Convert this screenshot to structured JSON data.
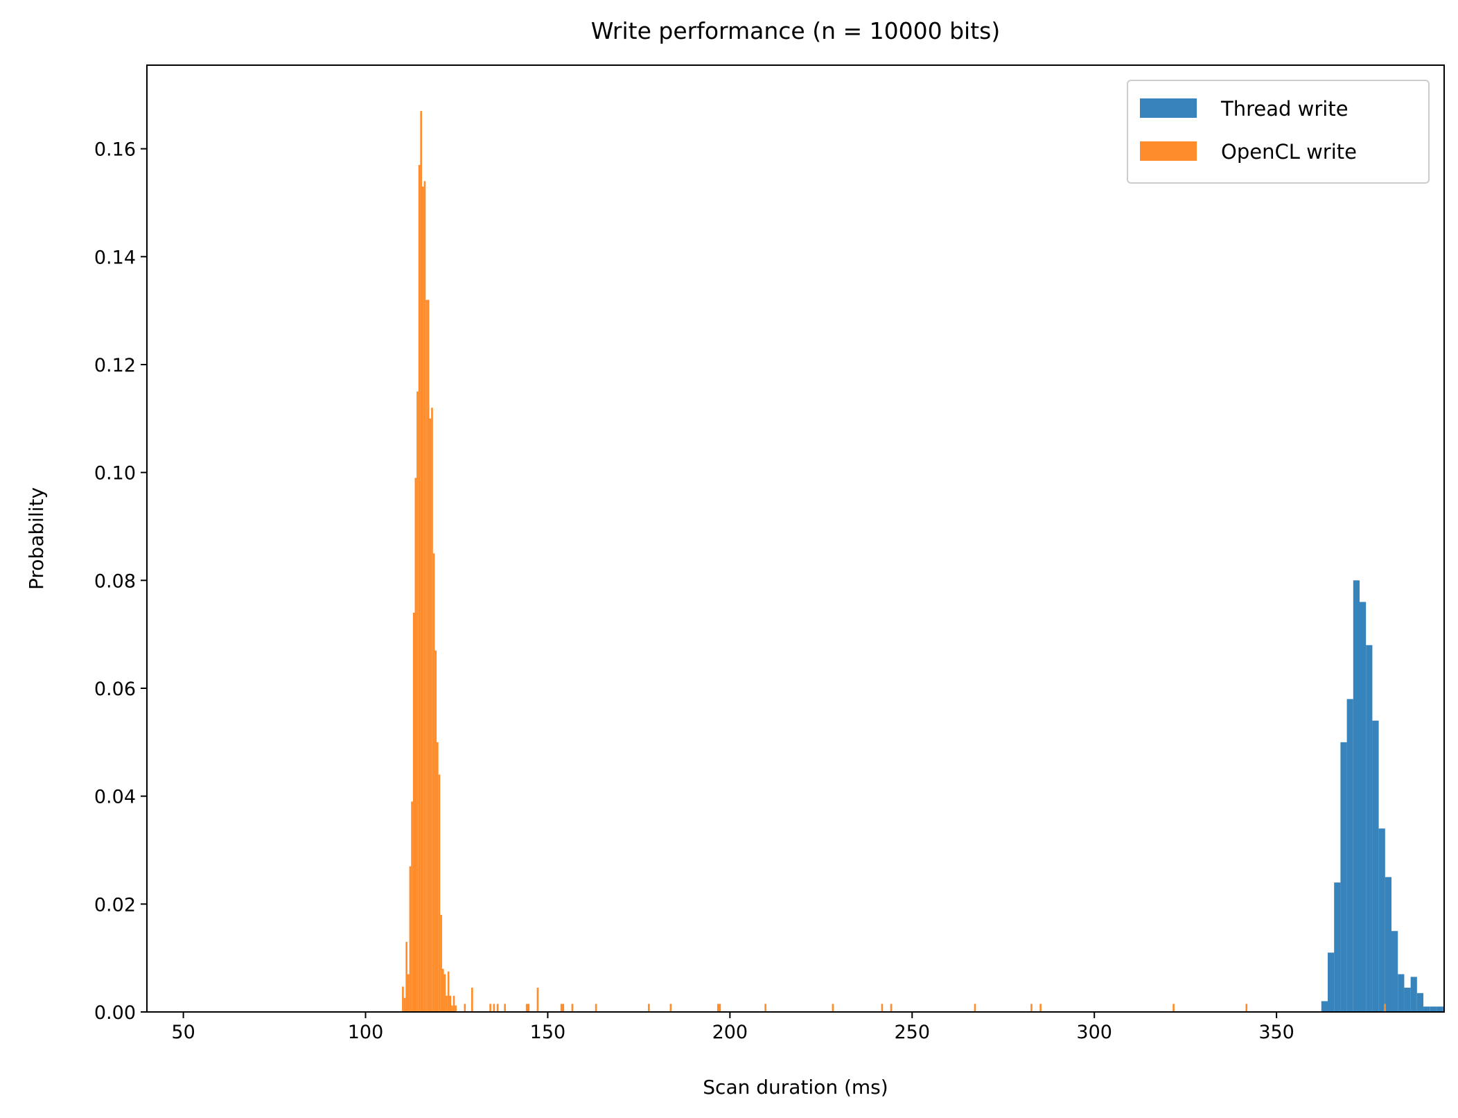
{
  "chart_data": {
    "type": "histogram",
    "title": "Write performance (n = 10000 bits)",
    "x_label": "Scan duration (ms)",
    "y_label": "Probability",
    "xlim": [
      40,
      396
    ],
    "ylim": [
      0,
      0.1755
    ],
    "xticks": [
      50,
      100,
      150,
      200,
      250,
      300,
      350
    ],
    "yticks": [
      {
        "value": 0,
        "label": "0.00"
      },
      {
        "value": 0.02,
        "label": "0.02"
      },
      {
        "value": 0.04,
        "label": "0.04"
      },
      {
        "value": 0.06,
        "label": "0.06"
      },
      {
        "value": 0.08,
        "label": "0.08"
      },
      {
        "value": 0.1,
        "label": "0.10"
      },
      {
        "value": 0.12,
        "label": "0.12"
      },
      {
        "value": 0.14,
        "label": "0.14"
      },
      {
        "value": 0.16,
        "label": "0.16"
      }
    ],
    "legend": "upper right",
    "series": [
      {
        "name": "Thread write",
        "color": "#3784bc",
        "bins": [
          362.3,
          364.05,
          365.8,
          367.55,
          369.3,
          371.05,
          372.8,
          374.55,
          376.3,
          378.05,
          379.8,
          381.55,
          383.3,
          385.05,
          386.8,
          388.55,
          390.3,
          392.05,
          393.8,
          395.55,
          397.3
        ],
        "values": [
          0.002,
          0.011,
          0.024,
          0.05,
          0.058,
          0.08,
          0.076,
          0.068,
          0.054,
          0.034,
          0.025,
          0.015,
          0.007,
          0.0045,
          0.0065,
          0.0035,
          0.001,
          0.001,
          0.001,
          0.001
        ]
      },
      {
        "name": "OpenCL write",
        "color": "#ff8c2a",
        "bins": [
          110,
          110.5,
          111,
          111.5,
          112,
          112.5,
          113,
          113.5,
          114,
          114.5,
          115,
          115.5,
          116,
          116.5,
          117,
          117.5,
          118,
          118.5,
          119,
          119.5,
          120,
          120.5,
          121,
          121.5,
          122,
          122.5,
          123,
          123.5,
          124,
          124.5,
          125,
          127,
          127.5,
          129,
          129.5,
          134,
          134.5,
          135,
          135.5,
          136,
          136.5,
          138,
          138.5,
          144,
          144.5,
          145,
          147,
          147.5,
          153.5,
          154,
          154.5,
          156.5,
          157,
          163,
          163.5,
          177.5,
          178,
          183.5,
          184,
          196.5,
          197,
          197.5,
          209.5,
          210,
          228,
          228.5,
          241.5,
          242,
          244,
          244.5,
          267,
          267.5,
          282.5,
          283,
          285,
          285.5,
          321.5,
          322,
          341.5,
          342,
          379.5,
          380
        ],
        "values": [
          0.0047,
          0.0026,
          0.013,
          0.007,
          0.027,
          0.039,
          0.074,
          0.099,
          0.115,
          0.157,
          0.167,
          0.153,
          0.154,
          0.132,
          0.132,
          0.11,
          0.112,
          0.085,
          0.067,
          0.05,
          0.044,
          0.018,
          0.008,
          0.007,
          0.003,
          0.0075,
          0.003,
          0.0012,
          0.003,
          0.0012,
          0,
          0.0015,
          0,
          0.0045,
          0,
          0.0015,
          0,
          0.0015,
          0,
          0.0015,
          0,
          0.0015,
          0,
          0.0015,
          0.0015,
          0,
          0.0045,
          0,
          0.0015,
          0.0015,
          0,
          0.0015,
          0,
          0.0015,
          0,
          0.0015,
          0,
          0.0015,
          0,
          0.0015,
          0.0015,
          0,
          0.0015,
          0,
          0.0015,
          0,
          0.0015,
          0,
          0.0015,
          0,
          0.0015,
          0,
          0.0015,
          0,
          0.0015,
          0,
          0.0015,
          0,
          0.0015,
          0,
          0.0015
        ]
      }
    ]
  }
}
